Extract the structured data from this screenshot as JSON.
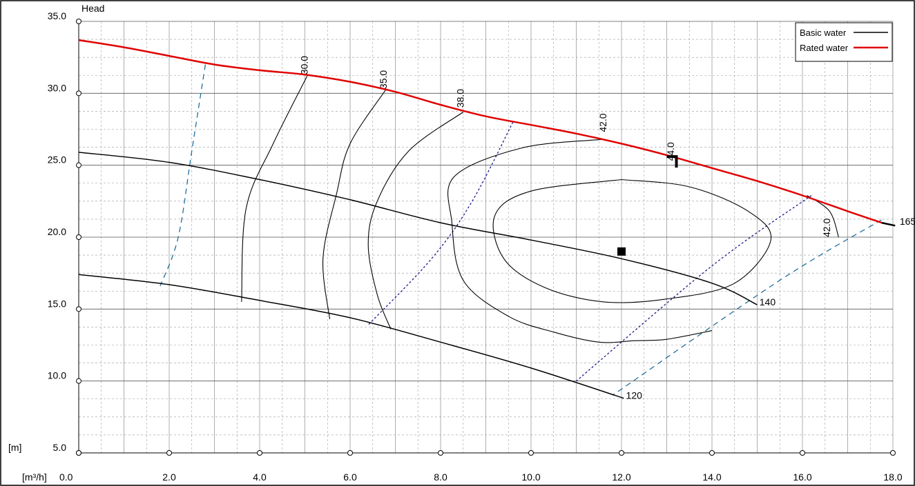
{
  "chart_data": {
    "type": "line",
    "title": "",
    "ylabel": "Head",
    "y_unit": "[m]",
    "x_unit": "[m³/h]",
    "xlim": [
      0,
      18.0
    ],
    "ylim": [
      5.0,
      35.0
    ],
    "grid": true,
    "legend_position": "top-right",
    "x_ticks": [
      {
        "v": 0.0,
        "label": "0.0"
      },
      {
        "v": 2.0,
        "label": "2.0"
      },
      {
        "v": 4.0,
        "label": "4.0"
      },
      {
        "v": 6.0,
        "label": "6.0"
      },
      {
        "v": 8.0,
        "label": "8.0"
      },
      {
        "v": 10.0,
        "label": "10.0"
      },
      {
        "v": 12.0,
        "label": "12.0"
      },
      {
        "v": 14.0,
        "label": "14.0"
      },
      {
        "v": 16.0,
        "label": "16.0"
      },
      {
        "v": 18.0,
        "label": "18.0"
      }
    ],
    "y_ticks": [
      {
        "v": 5.0,
        "label": "5.0"
      },
      {
        "v": 10.0,
        "label": "10.0"
      },
      {
        "v": 15.0,
        "label": "15.0"
      },
      {
        "v": 20.0,
        "label": "20.0"
      },
      {
        "v": 25.0,
        "label": "25.0"
      },
      {
        "v": 30.0,
        "label": "30.0"
      },
      {
        "v": 35.0,
        "label": "35.0"
      }
    ],
    "legend": [
      {
        "name": "Basic water",
        "color": "#000000"
      },
      {
        "name": "Rated water",
        "color": "#e00000"
      }
    ],
    "colors": {
      "basic": "#000000",
      "rated": "#e00000",
      "navy_dotted": "#1a1a8c",
      "teal_dashed": "#1f6f9f",
      "grid": "#9a9a9a"
    },
    "series": [
      {
        "id": "rated-water-curve",
        "name": "Rated water",
        "color": "#e00000",
        "width": 2.5,
        "points": [
          [
            0,
            33.7
          ],
          [
            1,
            33.2
          ],
          [
            2,
            32.6
          ],
          [
            3,
            32.0
          ],
          [
            4,
            31.6
          ],
          [
            5,
            31.3
          ],
          [
            6,
            30.8
          ],
          [
            7,
            30.1
          ],
          [
            8,
            29.2
          ],
          [
            9,
            28.4
          ],
          [
            10,
            27.8
          ],
          [
            11,
            27.2
          ],
          [
            12,
            26.5
          ],
          [
            13,
            25.7
          ],
          [
            14,
            24.8
          ],
          [
            15,
            23.9
          ],
          [
            16,
            22.9
          ],
          [
            17,
            21.8
          ],
          [
            17.75,
            21.0
          ]
        ]
      },
      {
        "id": "impeller-165-curve",
        "name": "",
        "color": "#000000",
        "width": 2.5,
        "points": [
          [
            17.75,
            21.0
          ],
          [
            18.05,
            20.8
          ]
        ]
      },
      {
        "id": "impeller-140-curve",
        "name": "",
        "color": "#000000",
        "width": 1.5,
        "points": [
          [
            0,
            25.9
          ],
          [
            2,
            25.2
          ],
          [
            4,
            24.0
          ],
          [
            6,
            22.6
          ],
          [
            8,
            21.0
          ],
          [
            10,
            19.8
          ],
          [
            12,
            18.5
          ],
          [
            14,
            16.8
          ],
          [
            15,
            15.3
          ]
        ]
      },
      {
        "id": "impeller-120-curve",
        "name": "",
        "color": "#000000",
        "width": 1.5,
        "points": [
          [
            0,
            17.4
          ],
          [
            2,
            16.7
          ],
          [
            4,
            15.6
          ],
          [
            6,
            14.4
          ],
          [
            8,
            12.7
          ],
          [
            10,
            10.9
          ],
          [
            12.05,
            8.8
          ]
        ]
      }
    ],
    "efficiency_curves": [
      {
        "id": "eff-30-curve",
        "label": "30.0",
        "label_pos": [
          5.0,
          31.3
        ],
        "points": [
          [
            5.05,
            31.2
          ],
          [
            4.3,
            26.5
          ],
          [
            3.7,
            22.0
          ],
          [
            3.6,
            15.5
          ]
        ]
      },
      {
        "id": "eff-35-curve",
        "label": "35.0",
        "label_pos": [
          6.75,
          30.3
        ],
        "points": [
          [
            6.8,
            30.3
          ],
          [
            6.0,
            26.5
          ],
          [
            5.7,
            23.0
          ],
          [
            5.4,
            18.5
          ],
          [
            5.55,
            14.3
          ]
        ]
      },
      {
        "id": "eff-38-curve",
        "label": "38.0",
        "label_pos": [
          8.45,
          29.0
        ],
        "points": [
          [
            8.5,
            28.7
          ],
          [
            7.3,
            26.0
          ],
          [
            6.6,
            22.5
          ],
          [
            6.4,
            19.5
          ],
          [
            6.6,
            16.0
          ],
          [
            6.9,
            13.6
          ]
        ]
      },
      {
        "id": "eff-42-curve",
        "label": "42.0",
        "label_pos": [
          11.6,
          27.3
        ],
        "points": [
          [
            11.6,
            26.8
          ],
          [
            9.8,
            26.2
          ],
          [
            8.3,
            24.2
          ],
          [
            8.25,
            21.0
          ],
          [
            8.5,
            17.0
          ],
          [
            9.5,
            14.5
          ],
          [
            10.5,
            13.4
          ],
          [
            11.5,
            12.7
          ],
          [
            12.3,
            12.8
          ],
          [
            13.0,
            12.9
          ],
          [
            14.0,
            13.5
          ]
        ]
      },
      {
        "id": "eff-44-curve",
        "label": "44.0",
        "label_pos": [
          13.1,
          25.3
        ],
        "points": [
          [
            12.0,
            24.0
          ],
          [
            10.0,
            23.2
          ],
          [
            9.2,
            21.5
          ],
          [
            9.4,
            18.5
          ],
          [
            10.3,
            16.5
          ],
          [
            11.6,
            15.5
          ],
          [
            13.0,
            15.7
          ],
          [
            14.5,
            16.8
          ],
          [
            15.3,
            19.8
          ],
          [
            14.8,
            21.8
          ],
          [
            13.5,
            23.5
          ],
          [
            12.0,
            24.0
          ]
        ]
      },
      {
        "id": "eff-42-right-curve",
        "label": "42.0",
        "label_pos": [
          16.55,
          20.0
        ],
        "points": [
          [
            16.1,
            22.9
          ],
          [
            16.6,
            21.8
          ],
          [
            16.8,
            20.0
          ]
        ]
      }
    ],
    "limit_lines": [
      {
        "id": "npsh-left-dashed-line",
        "style": "teal_dashed",
        "points": [
          [
            2.8,
            32.0
          ],
          [
            2.5,
            26.0
          ],
          [
            2.2,
            20.0
          ],
          [
            1.8,
            16.6
          ]
        ]
      },
      {
        "id": "dotted-line-1",
        "style": "navy_dotted",
        "points": [
          [
            9.6,
            28.0
          ],
          [
            8.7,
            22.5
          ],
          [
            7.8,
            18.5
          ],
          [
            6.4,
            13.9
          ]
        ]
      },
      {
        "id": "dotted-line-2",
        "style": "navy_dotted",
        "points": [
          [
            16.2,
            22.9
          ],
          [
            14.0,
            18.0
          ],
          [
            11.0,
            10.0
          ]
        ]
      },
      {
        "id": "dashed-line-right",
        "style": "teal_dashed",
        "points": [
          [
            17.75,
            21.2
          ],
          [
            15.5,
            17.0
          ],
          [
            11.8,
            9.0
          ]
        ]
      }
    ],
    "curve_labels": [
      {
        "id": "label-165",
        "text": "165",
        "x": 18.15,
        "y": 21.1
      },
      {
        "id": "label-140",
        "text": "140",
        "x": 15.05,
        "y": 15.5
      },
      {
        "id": "label-120",
        "text": "120",
        "x": 12.1,
        "y": 9.0
      }
    ],
    "operating_point": {
      "x": 12.0,
      "y": 19.0
    }
  }
}
